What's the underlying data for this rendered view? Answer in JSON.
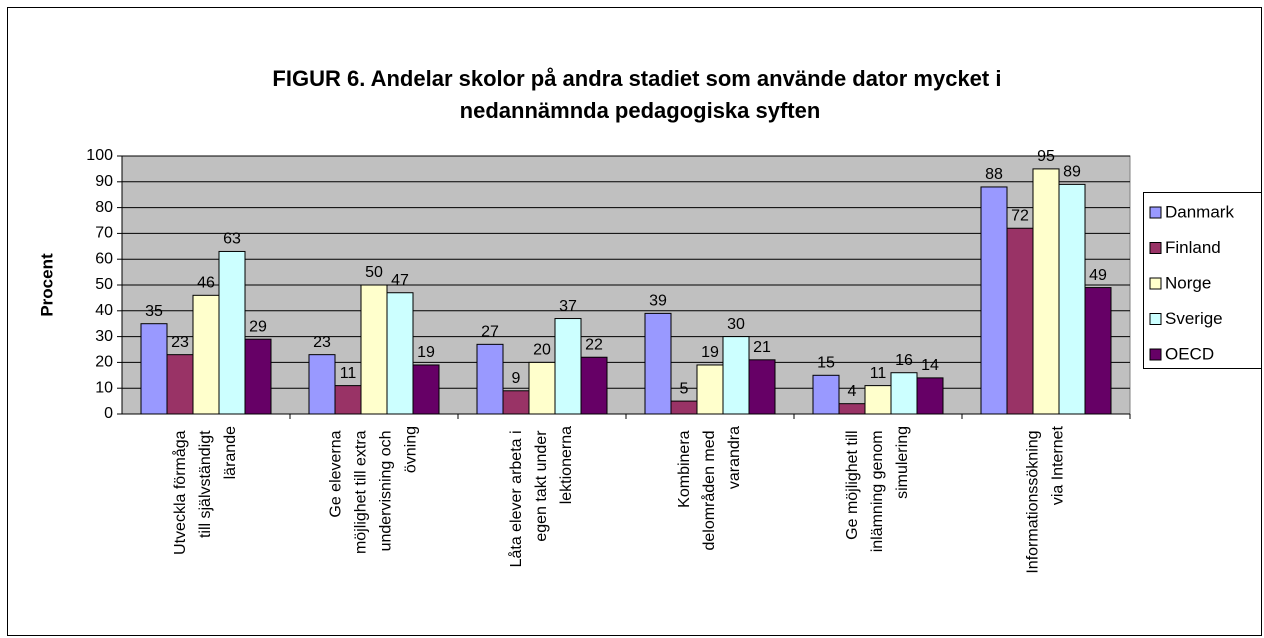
{
  "chart_data": {
    "type": "bar",
    "title": "FIGUR 6. Andelar skolor på andra stadiet som använde dator mycket i\nnedannämnda pedagogiska syften",
    "y_label": "Procent",
    "categories": [
      "Utveckla förmåga\ntill självständigt\nlärande",
      "Ge eleverna\nmöjlighet till extra\nundervisning och\növning",
      "Låta elever arbeta i\negen takt under\nlektionerna",
      "Kombinera\ndelområden med\nvarandra",
      "Ge möjlighet till\ninlämning genom\nsimulering",
      "Informationssökning\nvia Internet"
    ],
    "series": [
      {
        "name": "Danmark",
        "color": "#9999ff",
        "values": [
          35,
          23,
          27,
          39,
          15,
          88
        ]
      },
      {
        "name": "Finland",
        "color": "#993366",
        "values": [
          23,
          11,
          9,
          5,
          4,
          72
        ]
      },
      {
        "name": "Norge",
        "color": "#ffffcc",
        "values": [
          46,
          50,
          20,
          19,
          11,
          95
        ]
      },
      {
        "name": "Sverige",
        "color": "#ccffff",
        "values": [
          63,
          47,
          37,
          30,
          16,
          89
        ]
      },
      {
        "name": "OECD",
        "color": "#660066",
        "values": [
          29,
          19,
          22,
          21,
          14,
          49
        ]
      }
    ],
    "ylim": [
      0,
      100
    ],
    "yticks": [
      0,
      10,
      20,
      30,
      40,
      50,
      60,
      70,
      80,
      90,
      100
    ],
    "grid": true,
    "legend": "right",
    "plot_background": "#c0c0c0"
  }
}
